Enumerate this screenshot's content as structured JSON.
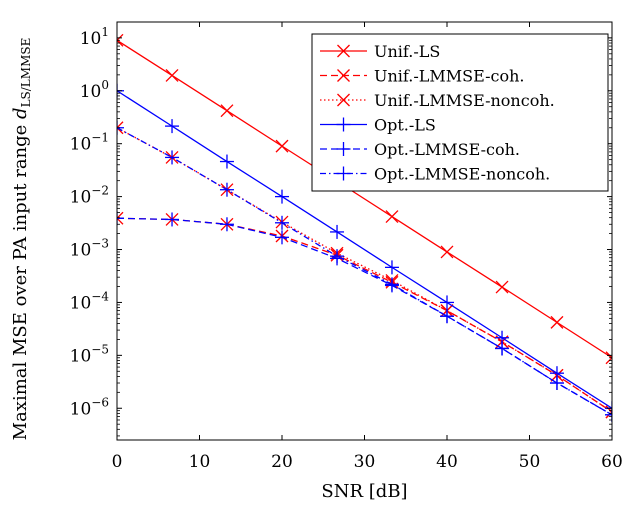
{
  "chart_data": {
    "type": "line",
    "xlabel": "SNR [dB]",
    "ylabel_text": "Maximal MSE over PA input range ",
    "ylabel_symbol": "d",
    "ylabel_subscript": "LS/LMMSE",
    "y_scale": "log",
    "xlim": [
      0,
      60
    ],
    "ylim_exp": [
      -6.6,
      1.3
    ],
    "xticks": [
      0,
      10,
      20,
      30,
      40,
      50,
      60
    ],
    "xtick_labels": [
      "0",
      "10",
      "20",
      "30",
      "40",
      "50",
      "60"
    ],
    "yticks_exp": [
      1,
      0,
      -1,
      -2,
      -3,
      -4,
      -5,
      -6
    ],
    "ytick_base": "10",
    "ytick_exponents": [
      "1",
      "0",
      "−1",
      "−2",
      "−3",
      "−4",
      "−5",
      "−6"
    ],
    "grid": false,
    "legend_position": "top-right",
    "x": [
      0,
      6.67,
      13.33,
      20,
      26.67,
      33.33,
      40,
      46.67,
      53.33,
      60
    ],
    "series": [
      {
        "name": "Unif.-LS",
        "color": "#ff0000",
        "dash": "solid",
        "marker": "x",
        "values": [
          9.0,
          1.95,
          0.42,
          0.09,
          0.0195,
          0.0042,
          0.0009,
          0.000195,
          4.2e-05,
          9e-06
        ]
      },
      {
        "name": "Unif.-LMMSE-coh.",
        "color": "#ff0000",
        "dash": "dashed",
        "marker": "x",
        "values": [
          0.0039,
          0.0037,
          0.003,
          0.0018,
          0.00078,
          0.00024,
          7e-05,
          1.8e-05,
          4.2e-06,
          8.5e-07
        ]
      },
      {
        "name": "Unif.-LMMSE-noncoh.",
        "color": "#ff0000",
        "dash": "dotted",
        "marker": "x",
        "values": [
          0.2,
          0.055,
          0.0135,
          0.0033,
          0.00085,
          0.00026,
          7e-05,
          1.8e-05,
          4.2e-06,
          8.5e-07
        ]
      },
      {
        "name": "Opt.-LS",
        "color": "#0000ff",
        "dash": "solid",
        "marker": "+",
        "values": [
          1.0,
          0.215,
          0.046,
          0.01,
          0.00215,
          0.00046,
          0.0001,
          2.15e-05,
          4.6e-06,
          1e-06
        ]
      },
      {
        "name": "Opt.-LMMSE-coh.",
        "color": "#0000ff",
        "dash": "dashed",
        "marker": "+",
        "values": [
          0.0039,
          0.0037,
          0.003,
          0.0017,
          0.00068,
          0.00021,
          5.5e-05,
          1.35e-05,
          3e-06,
          7.5e-07
        ]
      },
      {
        "name": "Opt.-LMMSE-noncoh.",
        "color": "#0000ff",
        "dash": "dashdot",
        "marker": "+",
        "values": [
          0.2,
          0.055,
          0.0135,
          0.0032,
          0.00075,
          0.00022,
          5.5e-05,
          1.35e-05,
          3e-06,
          7.5e-07
        ]
      }
    ]
  }
}
